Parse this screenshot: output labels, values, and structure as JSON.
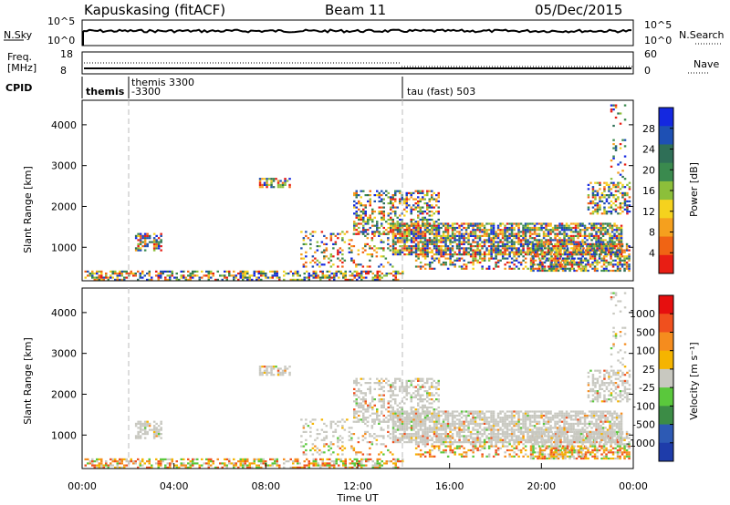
{
  "header": {
    "station": "Kapuskasing (fitACF)",
    "beam": "Beam 11",
    "date": "05/Dec/2015"
  },
  "colors": {
    "power_scale": [
      "#1428e0",
      "#1e50b4",
      "#2f6f57",
      "#3a8a4e",
      "#8cbf3a",
      "#f5d21e",
      "#f5a01e",
      "#f06414",
      "#e81e14"
    ],
    "velocity_scale": [
      "#1e3caa",
      "#2d5ab4",
      "#3c8c46",
      "#5ac83c",
      "#c8c8c0",
      "#f5b400",
      "#f58c1e",
      "#f0501e",
      "#e60f0f"
    ],
    "ground_scatter": "#c8c8c0"
  },
  "chart_data": [
    {
      "type": "line",
      "panel": "noise",
      "left_label": "N.Sky",
      "left_ticks": [
        "10^5",
        "10^0"
      ],
      "right_label": "N.Search",
      "right_ticks": [
        "10^5",
        "10^0"
      ],
      "legend": [
        "N.Search"
      ]
    },
    {
      "type": "line",
      "panel": "frequency",
      "left_label_lines": [
        "Freq.",
        "[MHz]"
      ],
      "left_ticks": [
        18,
        8
      ],
      "right_label": "Nave",
      "right_ticks": [
        60,
        0
      ],
      "legend": [
        "Nave"
      ]
    },
    {
      "type": "table",
      "panel": "cpid",
      "label": "CPID",
      "segments": [
        {
          "start_hour": 0,
          "end_hour": 1.8,
          "text": "themis"
        },
        {
          "start_hour": 1.8,
          "end_hour": 14.0,
          "text": "themis 3300",
          "text2": "-3300"
        },
        {
          "start_hour": 14.0,
          "end_hour": 24.0,
          "text": "tau (fast) 503"
        }
      ]
    },
    {
      "type": "heatmap",
      "panel": "power",
      "ylabel": "Slant Range [km]",
      "yticks": [
        1000,
        2000,
        3000,
        4000
      ],
      "ylim": [
        180,
        4600
      ],
      "xlim": [
        0,
        24
      ],
      "colorbar_label": "Power [dB]",
      "colorbar_ticks": [
        "28",
        "24",
        "20",
        "16",
        "12",
        "8",
        "4"
      ]
    },
    {
      "type": "heatmap",
      "panel": "velocity",
      "ylabel": "Slant Range [km]",
      "yticks": [
        1000,
        2000,
        3000,
        4000
      ],
      "ylim": [
        180,
        4600
      ],
      "xlim": [
        0,
        24
      ],
      "xlabel": "Time UT",
      "xticks": [
        "00:00",
        "04:00",
        "08:00",
        "12:00",
        "16:00",
        "20:00",
        "00:00"
      ],
      "colorbar_label": "Velocity [m s⁻¹]",
      "colorbar_ticks": [
        "1000",
        "500",
        "100",
        "25",
        "-25",
        "-100",
        "-500",
        "-1000"
      ]
    }
  ]
}
